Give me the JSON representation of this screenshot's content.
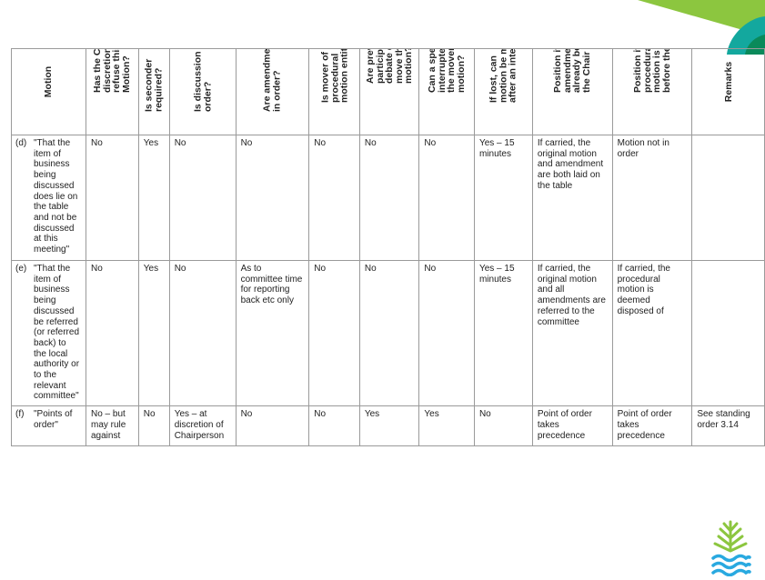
{
  "headers": [
    "Motion",
    "Has the Chair discretion to refuse this Motion?",
    "Is seconder required?",
    "Is discussion in order?",
    "Are amendments in order?",
    "Is mover of procedural motion entitled",
    "Are previous participants in debate entitled to move this motion?",
    "Can a speaker be interrupted by the mover of this motion?",
    "If lost, can motion be moved after an interval?",
    "Position if an amendment is already before the Chair",
    "Position if a procedural motion is already before the Chair",
    "Remarks"
  ],
  "rows": [
    {
      "num": "(d)",
      "motion": "\"That the item of business being discussed does lie on the table and not be discussed at this meeting\"",
      "cells": [
        "No",
        "Yes",
        "No",
        "No",
        "No",
        "No",
        "No",
        "Yes – 15 minutes",
        "If carried, the original motion and amendment are both laid on the table",
        "Motion not in order",
        ""
      ]
    },
    {
      "num": "(e)",
      "motion": "\"That the item of business being discussed be referred (or referred back) to the local authority or to the relevant committee\"",
      "cells": [
        "No",
        "Yes",
        "No",
        "As to committee time for reporting back etc only",
        "No",
        "No",
        "No",
        "Yes – 15 minutes",
        "If carried, the original motion and all amendments are referred to the committee",
        "If carried, the procedural motion is deemed disposed of",
        ""
      ]
    },
    {
      "num": "(f)",
      "motion": "\"Points of order\"",
      "cells": [
        "No – but may rule against",
        "No",
        "Yes – at discretion of Chairperson",
        "No",
        "No",
        "Yes",
        "Yes",
        "No",
        "Point of order takes precedence",
        "Point of order takes precedence",
        "See standing order 3.14"
      ]
    }
  ],
  "colors": {
    "border": "#9a9a9a",
    "corner_green": "#8cc63f",
    "corner_teal": "#13a89e",
    "logo_blue": "#29a9e0"
  },
  "icons": {
    "corner": "green-swoosh-decoration",
    "logo": "tree-water-logo-icon"
  }
}
